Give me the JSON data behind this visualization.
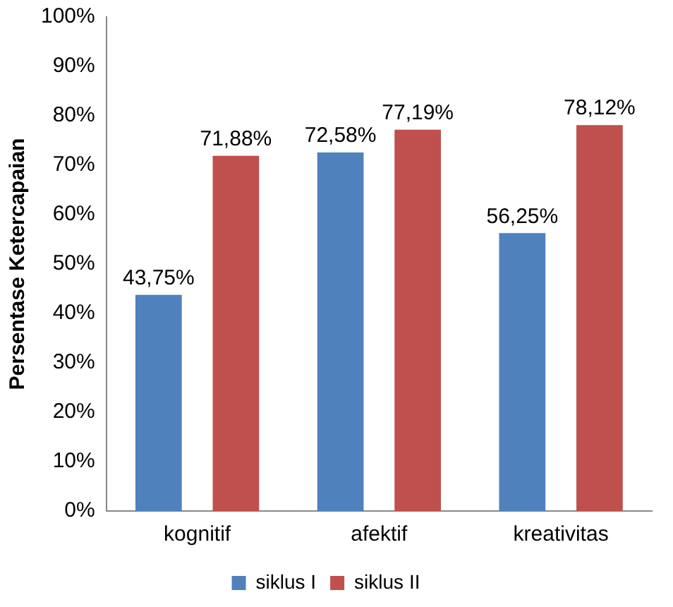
{
  "chart_data": {
    "type": "bar",
    "ylabel": "Persentase Ketercapaian",
    "categories": [
      "kognitif",
      "afektif",
      "kreativitas"
    ],
    "series": [
      {
        "name": "siklus I",
        "color": "#4f81bd",
        "values": [
          43.75,
          72.58,
          56.25
        ],
        "value_labels": [
          "43,75%",
          "72,58%",
          "56,25%"
        ]
      },
      {
        "name": "siklus II",
        "color": "#c0504d",
        "values": [
          71.88,
          77.19,
          78.12
        ],
        "value_labels": [
          "71,88%",
          "77,19%",
          "78,12%"
        ]
      }
    ],
    "ylim": [
      0,
      100
    ],
    "yticks": [
      {
        "value": 0,
        "label": "0%"
      },
      {
        "value": 10,
        "label": "10%"
      },
      {
        "value": 20,
        "label": "20%"
      },
      {
        "value": 30,
        "label": "30%"
      },
      {
        "value": 40,
        "label": "40%"
      },
      {
        "value": 50,
        "label": "50%"
      },
      {
        "value": 60,
        "label": "60%"
      },
      {
        "value": 70,
        "label": "70%"
      },
      {
        "value": 80,
        "label": "80%"
      },
      {
        "value": 90,
        "label": "90%"
      },
      {
        "value": 100,
        "label": "100%"
      }
    ],
    "legend": "bottom"
  }
}
